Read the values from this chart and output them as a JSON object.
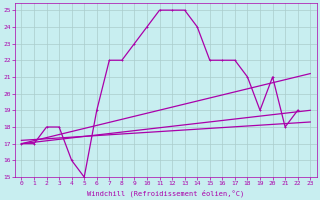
{
  "xlabel": "Windchill (Refroidissement éolien,°C)",
  "bg_color": "#c8eef0",
  "grid_color": "#aacccc",
  "line_color": "#aa00aa",
  "xlim": [
    -0.5,
    23.5
  ],
  "ylim": [
    15,
    25.4
  ],
  "xticks": [
    0,
    1,
    2,
    3,
    4,
    5,
    6,
    7,
    8,
    9,
    10,
    11,
    12,
    13,
    14,
    15,
    16,
    17,
    18,
    19,
    20,
    21,
    22,
    23
  ],
  "yticks": [
    15,
    16,
    17,
    18,
    19,
    20,
    21,
    22,
    23,
    24,
    25
  ],
  "main_series": [
    17.0,
    17.0,
    18.0,
    18.0,
    16.0,
    15.0,
    19.0,
    22.0,
    22.0,
    23.0,
    24.0,
    25.0,
    25.0,
    25.0,
    24.0,
    22.0,
    22.0,
    22.0,
    21.0,
    19.0,
    21.0,
    18.0,
    19.0,
    null
  ],
  "line1_x": [
    0,
    23
  ],
  "line1_y": [
    17.0,
    19.0
  ],
  "line2_x": [
    0,
    23
  ],
  "line2_y": [
    17.2,
    18.3
  ],
  "line3_x": [
    0,
    23
  ],
  "line3_y": [
    17.0,
    21.2
  ],
  "lw": 0.9,
  "marker_size": 2.0,
  "tick_fontsize": 4.5,
  "xlabel_fontsize": 5.0
}
